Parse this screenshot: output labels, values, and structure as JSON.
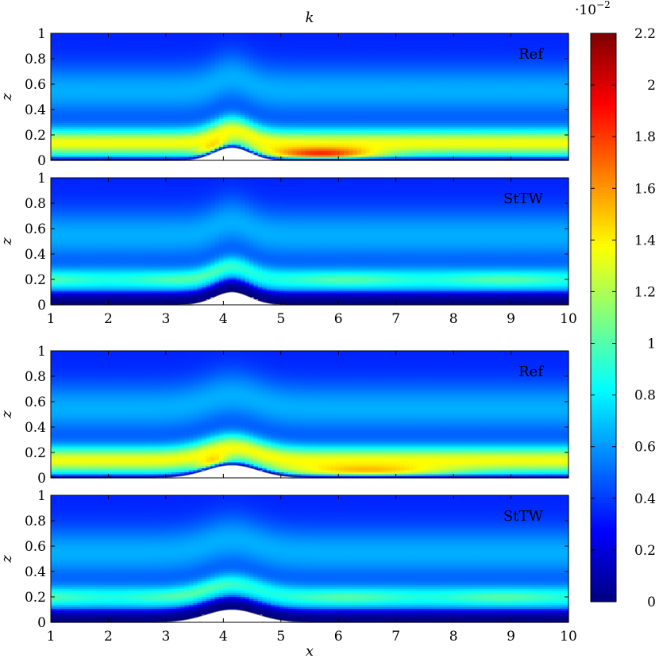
{
  "chart_data": {
    "type": "heatmap",
    "title": "k",
    "xlabel": "x",
    "ylabel": "z",
    "xlim": [
      1,
      10
    ],
    "ylim": [
      0,
      1
    ],
    "x_ticks": [
      "1",
      "2",
      "3",
      "4",
      "5",
      "6",
      "7",
      "8",
      "9",
      "10"
    ],
    "y_ticks": [
      "0",
      "0.2",
      "0.4",
      "0.6",
      "0.8",
      "1"
    ],
    "colorbar": {
      "min": 0,
      "max": 0.022,
      "exponent_label": "·10",
      "exponent_power": "−2",
      "colormap": "jet",
      "ticks": [
        "0",
        "0.2",
        "0.4",
        "0.6",
        "0.8",
        "1",
        "1.2",
        "1.4",
        "1.6",
        "1.8",
        "2",
        "2.2"
      ]
    },
    "hill": {
      "center_x": 4.15,
      "height": 0.1
    },
    "panels": [
      {
        "name": "ref-top",
        "label": "Ref",
        "peak_value": 0.0215,
        "peak_x": 5.7,
        "peak_z": 0.1,
        "hill_width": 0.55,
        "wake": 1.0
      },
      {
        "name": "sttw-top",
        "label": "StTW",
        "peak_value": 0.0095,
        "peak_x": 7.0,
        "peak_z": 0.2,
        "hill_width": 0.55,
        "wake": 0.8
      },
      {
        "name": "ref-bottom",
        "label": "Ref",
        "peak_value": 0.018,
        "peak_x": 6.5,
        "peak_z": 0.1,
        "hill_width": 0.8,
        "wake": 1.5
      },
      {
        "name": "sttw-bottom",
        "label": "StTW",
        "peak_value": 0.0092,
        "peak_x": 7.5,
        "peak_z": 0.2,
        "hill_width": 0.8,
        "wake": 2.0
      }
    ]
  }
}
